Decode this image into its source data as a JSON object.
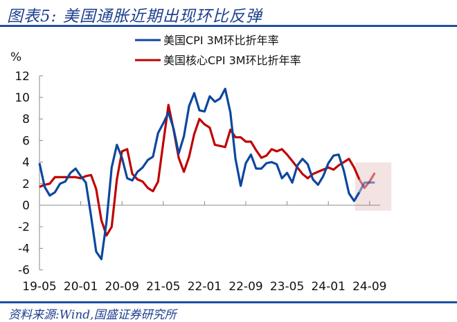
{
  "header": {
    "title": "图表5:  美国通胀近期出现环比反弹"
  },
  "footer": {
    "source": "资料来源:Wind,国盛证券研究所"
  },
  "colors": {
    "cpi": "#0b47a0",
    "core": "#c00000",
    "highlight": "#f3e3e3",
    "axis": "#888888",
    "brand": "#1f4fa0"
  },
  "chart_data": {
    "type": "line",
    "title": "美国通胀近期出现环比反弹",
    "xlabel": "",
    "ylabel": "%",
    "ylim": [
      -6,
      12
    ],
    "yticks": [
      12,
      10,
      8,
      6,
      4,
      2,
      0,
      -2,
      -4,
      -6
    ],
    "xtick_labels": [
      "19-05",
      "20-01",
      "20-09",
      "21-05",
      "22-01",
      "22-09",
      "23-05",
      "24-01",
      "24-09"
    ],
    "legend": [
      "美国CPI 3M环比折年率",
      "美国核心CPI 3M环比折年率"
    ],
    "legend_position": "top-center",
    "grid": false,
    "highlight_region": {
      "from": "24-07",
      "to": "24-10"
    },
    "x": [
      "19-05",
      "19-06",
      "19-07",
      "19-08",
      "19-09",
      "19-10",
      "19-11",
      "19-12",
      "20-01",
      "20-02",
      "20-03",
      "20-04",
      "20-05",
      "20-06",
      "20-07",
      "20-08",
      "20-09",
      "20-10",
      "20-11",
      "20-12",
      "21-01",
      "21-02",
      "21-03",
      "21-04",
      "21-05",
      "21-06",
      "21-07",
      "21-08",
      "21-09",
      "21-10",
      "21-11",
      "21-12",
      "22-01",
      "22-02",
      "22-03",
      "22-04",
      "22-05",
      "22-06",
      "22-07",
      "22-08",
      "22-09",
      "22-10",
      "22-11",
      "22-12",
      "23-01",
      "23-02",
      "23-03",
      "23-04",
      "23-05",
      "23-06",
      "23-07",
      "23-08",
      "23-09",
      "23-10",
      "23-11",
      "23-12",
      "24-01",
      "24-02",
      "24-03",
      "24-04",
      "24-05",
      "24-06",
      "24-07",
      "24-08",
      "24-09",
      "24-10"
    ],
    "series": [
      {
        "name": "美国CPI 3M环比折年率",
        "values": [
          3.9,
          1.7,
          0.9,
          1.2,
          2.0,
          2.2,
          3.0,
          3.4,
          2.7,
          2.1,
          -1.0,
          -4.3,
          -5.0,
          -1.5,
          3.5,
          5.6,
          4.4,
          2.5,
          2.3,
          3.1,
          3.5,
          4.2,
          4.5,
          6.7,
          7.6,
          8.6,
          7.1,
          4.8,
          6.4,
          9.2,
          10.4,
          8.8,
          8.7,
          10.1,
          9.6,
          9.9,
          10.8,
          8.6,
          4.3,
          1.8,
          3.9,
          4.7,
          3.4,
          3.4,
          3.9,
          4.0,
          3.8,
          2.5,
          3.0,
          2.1,
          3.7,
          4.3,
          3.8,
          2.4,
          1.9,
          2.7,
          3.9,
          4.6,
          4.7,
          3.2,
          1.1,
          0.4,
          1.2,
          2.1,
          2.1,
          2.1
        ]
      },
      {
        "name": "美国核心CPI 3M环比折年率",
        "values": [
          1.7,
          1.9,
          2.0,
          2.6,
          2.6,
          2.6,
          2.6,
          2.6,
          2.5,
          2.7,
          2.8,
          1.5,
          -1.4,
          -2.8,
          -2.0,
          2.4,
          5.0,
          5.2,
          2.9,
          2.4,
          2.2,
          1.6,
          1.3,
          2.2,
          5.8,
          9.3,
          7.0,
          4.4,
          3.1,
          4.5,
          6.6,
          8.0,
          7.5,
          7.2,
          5.6,
          5.5,
          5.4,
          7.0,
          6.3,
          6.3,
          5.9,
          5.9,
          5.1,
          4.4,
          4.6,
          5.2,
          5.0,
          5.2,
          4.7,
          4.1,
          3.5,
          2.9,
          2.5,
          2.9,
          3.1,
          3.3,
          3.5,
          3.3,
          3.7,
          4.0,
          4.3,
          3.5,
          2.4,
          1.6,
          2.2,
          3.0
        ]
      }
    ]
  }
}
